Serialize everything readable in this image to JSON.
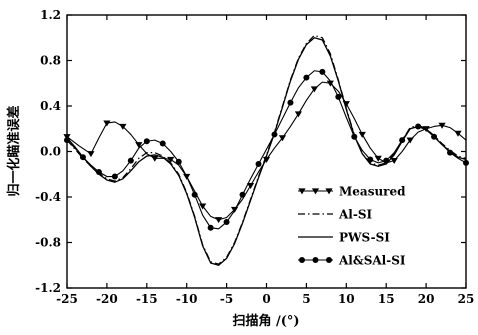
{
  "chart_data": {
    "type": "line",
    "title": "",
    "xlabel": "扫描角 /(°)",
    "ylabel": "归一化瞄准误差",
    "xlim": [
      -25,
      25
    ],
    "ylim": [
      -1.2,
      1.2
    ],
    "x_ticks": [
      "-25",
      "-20",
      "-15",
      "-10",
      "-5",
      "0",
      "5",
      "10",
      "15",
      "20",
      "25"
    ],
    "y_ticks": [
      "-1.2",
      "-0.8",
      "-0.4",
      "0.0",
      "0.4",
      "0.8",
      "1.2"
    ],
    "legend_position": "bottom-right",
    "series": [
      {
        "name": "Measured",
        "style": "solid-with-triangle-markers",
        "color": "#000000",
        "points": [
          [
            -25,
            0.13
          ],
          [
            -23.5,
            0.05
          ],
          [
            -22,
            -0.02
          ],
          [
            -21,
            0.12
          ],
          [
            -20,
            0.25
          ],
          [
            -19,
            0.26
          ],
          [
            -18,
            0.22
          ],
          [
            -17,
            0.15
          ],
          [
            -16,
            0.06
          ],
          [
            -15,
            -0.02
          ],
          [
            -14,
            -0.06
          ],
          [
            -13,
            -0.06
          ],
          [
            -12,
            -0.07
          ],
          [
            -11,
            -0.12
          ],
          [
            -10,
            -0.22
          ],
          [
            -9,
            -0.35
          ],
          [
            -8,
            -0.48
          ],
          [
            -7,
            -0.57
          ],
          [
            -6,
            -0.6
          ],
          [
            -5,
            -0.58
          ],
          [
            -4,
            -0.51
          ],
          [
            -3,
            -0.42
          ],
          [
            -2,
            -0.3
          ],
          [
            -1,
            -0.18
          ],
          [
            0,
            -0.07
          ],
          [
            1,
            0.03
          ],
          [
            2,
            0.12
          ],
          [
            3,
            0.22
          ],
          [
            4,
            0.33
          ],
          [
            5,
            0.45
          ],
          [
            6,
            0.55
          ],
          [
            7,
            0.61
          ],
          [
            8,
            0.6
          ],
          [
            9,
            0.53
          ],
          [
            10,
            0.42
          ],
          [
            11,
            0.29
          ],
          [
            12,
            0.15
          ],
          [
            13,
            0.03
          ],
          [
            14,
            -0.06
          ],
          [
            15,
            -0.1
          ],
          [
            16,
            -0.08
          ],
          [
            17,
            0.0
          ],
          [
            18,
            0.1
          ],
          [
            19,
            0.17
          ],
          [
            20,
            0.2
          ],
          [
            21,
            0.22
          ],
          [
            22,
            0.23
          ],
          [
            23,
            0.21
          ],
          [
            24,
            0.16
          ],
          [
            25,
            0.1
          ]
        ]
      },
      {
        "name": "Al-SI",
        "style": "dash-dot",
        "color": "#000000",
        "points": [
          [
            -25,
            0.1
          ],
          [
            -24,
            0.02
          ],
          [
            -23,
            -0.06
          ],
          [
            -22,
            -0.13
          ],
          [
            -21,
            -0.19
          ],
          [
            -20,
            -0.24
          ],
          [
            -19,
            -0.26
          ],
          [
            -18,
            -0.23
          ],
          [
            -17,
            -0.15
          ],
          [
            -16,
            -0.06
          ],
          [
            -15,
            -0.01
          ],
          [
            -14,
            -0.01
          ],
          [
            -13,
            -0.04
          ],
          [
            -12,
            -0.1
          ],
          [
            -11,
            -0.2
          ],
          [
            -10,
            -0.36
          ],
          [
            -9,
            -0.57
          ],
          [
            -8,
            -0.82
          ],
          [
            -7,
            -0.97
          ],
          [
            -6,
            -0.99
          ],
          [
            -5,
            -0.93
          ],
          [
            -4,
            -0.8
          ],
          [
            -3,
            -0.62
          ],
          [
            -2,
            -0.42
          ],
          [
            -1,
            -0.22
          ],
          [
            0,
            -0.03
          ],
          [
            1,
            0.17
          ],
          [
            2,
            0.4
          ],
          [
            3,
            0.63
          ],
          [
            4,
            0.82
          ],
          [
            5,
            0.95
          ],
          [
            6,
            1.02
          ],
          [
            7,
            1.0
          ],
          [
            8,
            0.86
          ],
          [
            9,
            0.63
          ],
          [
            10,
            0.38
          ],
          [
            11,
            0.15
          ],
          [
            12,
            -0.02
          ],
          [
            13,
            -0.1
          ],
          [
            14,
            -0.12
          ],
          [
            15,
            -0.1
          ],
          [
            16,
            -0.02
          ],
          [
            17,
            0.1
          ],
          [
            18,
            0.21
          ],
          [
            19,
            0.23
          ],
          [
            20,
            0.2
          ],
          [
            21,
            0.14
          ],
          [
            22,
            0.07
          ],
          [
            23,
            0.01
          ],
          [
            24,
            -0.04
          ],
          [
            25,
            -0.06
          ]
        ]
      },
      {
        "name": "PWS-SI",
        "style": "solid",
        "color": "#000000",
        "points": [
          [
            -25,
            0.12
          ],
          [
            -24,
            0.04
          ],
          [
            -23,
            -0.05
          ],
          [
            -22,
            -0.13
          ],
          [
            -21,
            -0.2
          ],
          [
            -20,
            -0.25
          ],
          [
            -19,
            -0.27
          ],
          [
            -18,
            -0.24
          ],
          [
            -17,
            -0.17
          ],
          [
            -16,
            -0.09
          ],
          [
            -15,
            -0.04
          ],
          [
            -14,
            -0.03
          ],
          [
            -13,
            -0.05
          ],
          [
            -12,
            -0.11
          ],
          [
            -11,
            -0.21
          ],
          [
            -10,
            -0.37
          ],
          [
            -9,
            -0.58
          ],
          [
            -8,
            -0.83
          ],
          [
            -7,
            -0.98
          ],
          [
            -6,
            -1.0
          ],
          [
            -5,
            -0.94
          ],
          [
            -4,
            -0.81
          ],
          [
            -3,
            -0.63
          ],
          [
            -2,
            -0.43
          ],
          [
            -1,
            -0.23
          ],
          [
            0,
            -0.04
          ],
          [
            1,
            0.16
          ],
          [
            2,
            0.39
          ],
          [
            3,
            0.62
          ],
          [
            4,
            0.81
          ],
          [
            5,
            0.94
          ],
          [
            6,
            1.0
          ],
          [
            7,
            0.98
          ],
          [
            8,
            0.84
          ],
          [
            9,
            0.62
          ],
          [
            10,
            0.37
          ],
          [
            11,
            0.14
          ],
          [
            12,
            -0.02
          ],
          [
            13,
            -0.11
          ],
          [
            14,
            -0.13
          ],
          [
            15,
            -0.11
          ],
          [
            16,
            -0.03
          ],
          [
            17,
            0.09
          ],
          [
            18,
            0.2
          ],
          [
            19,
            0.22
          ],
          [
            20,
            0.2
          ],
          [
            21,
            0.13
          ],
          [
            22,
            0.06
          ],
          [
            23,
            0.0
          ],
          [
            24,
            -0.05
          ],
          [
            25,
            -0.07
          ]
        ]
      },
      {
        "name": "Al&SAl-SI",
        "style": "solid-with-circle-markers",
        "color": "#000000",
        "points": [
          [
            -25,
            0.1
          ],
          [
            -24,
            0.03
          ],
          [
            -23,
            -0.05
          ],
          [
            -22,
            -0.12
          ],
          [
            -21,
            -0.18
          ],
          [
            -20,
            -0.22
          ],
          [
            -19,
            -0.22
          ],
          [
            -18,
            -0.17
          ],
          [
            -17,
            -0.08
          ],
          [
            -16,
            0.03
          ],
          [
            -15,
            0.09
          ],
          [
            -14,
            0.1
          ],
          [
            -13,
            0.07
          ],
          [
            -12,
            0.0
          ],
          [
            -11,
            -0.09
          ],
          [
            -10,
            -0.22
          ],
          [
            -9,
            -0.38
          ],
          [
            -8,
            -0.56
          ],
          [
            -7,
            -0.67
          ],
          [
            -6,
            -0.68
          ],
          [
            -5,
            -0.62
          ],
          [
            -4,
            -0.52
          ],
          [
            -3,
            -0.38
          ],
          [
            -2,
            -0.24
          ],
          [
            -1,
            -0.11
          ],
          [
            0,
            0.02
          ],
          [
            1,
            0.15
          ],
          [
            2,
            0.29
          ],
          [
            3,
            0.43
          ],
          [
            4,
            0.56
          ],
          [
            5,
            0.65
          ],
          [
            6,
            0.71
          ],
          [
            7,
            0.7
          ],
          [
            8,
            0.62
          ],
          [
            9,
            0.48
          ],
          [
            10,
            0.3
          ],
          [
            11,
            0.13
          ],
          [
            12,
            0.01
          ],
          [
            13,
            -0.07
          ],
          [
            14,
            -0.1
          ],
          [
            15,
            -0.08
          ],
          [
            16,
            -0.01
          ],
          [
            17,
            0.1
          ],
          [
            18,
            0.2
          ],
          [
            19,
            0.22
          ],
          [
            20,
            0.19
          ],
          [
            21,
            0.13
          ],
          [
            22,
            0.06
          ],
          [
            23,
            -0.01
          ],
          [
            24,
            -0.06
          ],
          [
            25,
            -0.1
          ]
        ]
      }
    ]
  }
}
